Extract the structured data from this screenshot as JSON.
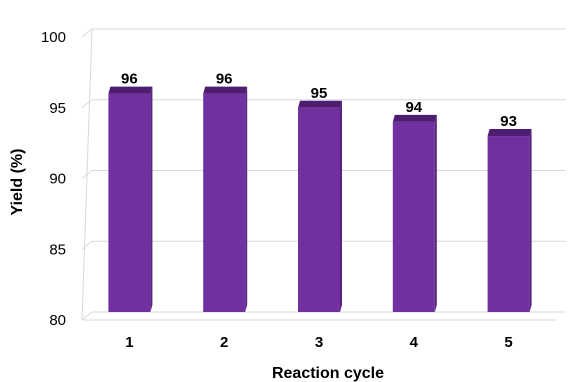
{
  "chart_data": {
    "type": "bar",
    "categories": [
      "1",
      "2",
      "3",
      "4",
      "5"
    ],
    "values": [
      96,
      96,
      95,
      94,
      93
    ],
    "data_labels": [
      "96",
      "96",
      "95",
      "94",
      "93"
    ],
    "xlabel": "Reaction cycle",
    "ylabel": "Yield (%)",
    "ylim": [
      80,
      100
    ],
    "yticks": [
      "80",
      "85",
      "90",
      "95",
      "100"
    ],
    "grid": true,
    "legend": "none",
    "colors": {
      "bar_front": "#7030A0",
      "bar_side": "#58237F",
      "bar_top": "#4E1D72",
      "grid": "#D9D9D9"
    }
  }
}
